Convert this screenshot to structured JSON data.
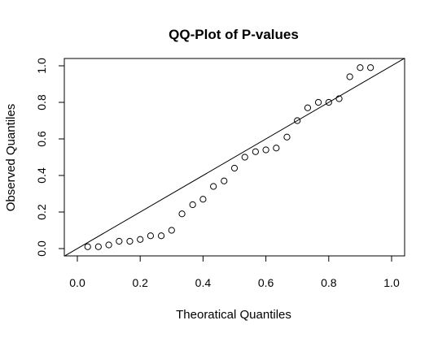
{
  "chart_data": {
    "type": "scatter",
    "title": "QQ-Plot of P-values",
    "xlabel": "Theoratical Quantiles",
    "ylabel": "Observed Quantiles",
    "xlim": [
      0,
      1
    ],
    "ylim": [
      0,
      1
    ],
    "xticks": [
      "0.0",
      "0.2",
      "0.4",
      "0.6",
      "0.8",
      "1.0"
    ],
    "yticks": [
      "0.0",
      "0.2",
      "0.4",
      "0.6",
      "0.8",
      "1.0"
    ],
    "grid": false,
    "legend": "none",
    "reference_line": {
      "slope": 1,
      "intercept": 0
    },
    "marker": "open-circle",
    "series": [
      {
        "x": [
          0.033,
          0.067,
          0.1,
          0.133,
          0.167,
          0.2,
          0.233,
          0.267,
          0.3,
          0.333,
          0.367,
          0.4,
          0.433,
          0.467,
          0.5,
          0.533,
          0.567,
          0.6,
          0.633,
          0.667,
          0.7,
          0.733,
          0.767,
          0.8,
          0.833,
          0.867,
          0.9,
          0.933
        ],
        "y": [
          0.01,
          0.01,
          0.02,
          0.04,
          0.04,
          0.05,
          0.07,
          0.07,
          0.1,
          0.19,
          0.24,
          0.27,
          0.34,
          0.37,
          0.44,
          0.5,
          0.53,
          0.54,
          0.55,
          0.61,
          0.7,
          0.77,
          0.8,
          0.8,
          0.82,
          0.94,
          0.99,
          0.99
        ]
      }
    ]
  }
}
